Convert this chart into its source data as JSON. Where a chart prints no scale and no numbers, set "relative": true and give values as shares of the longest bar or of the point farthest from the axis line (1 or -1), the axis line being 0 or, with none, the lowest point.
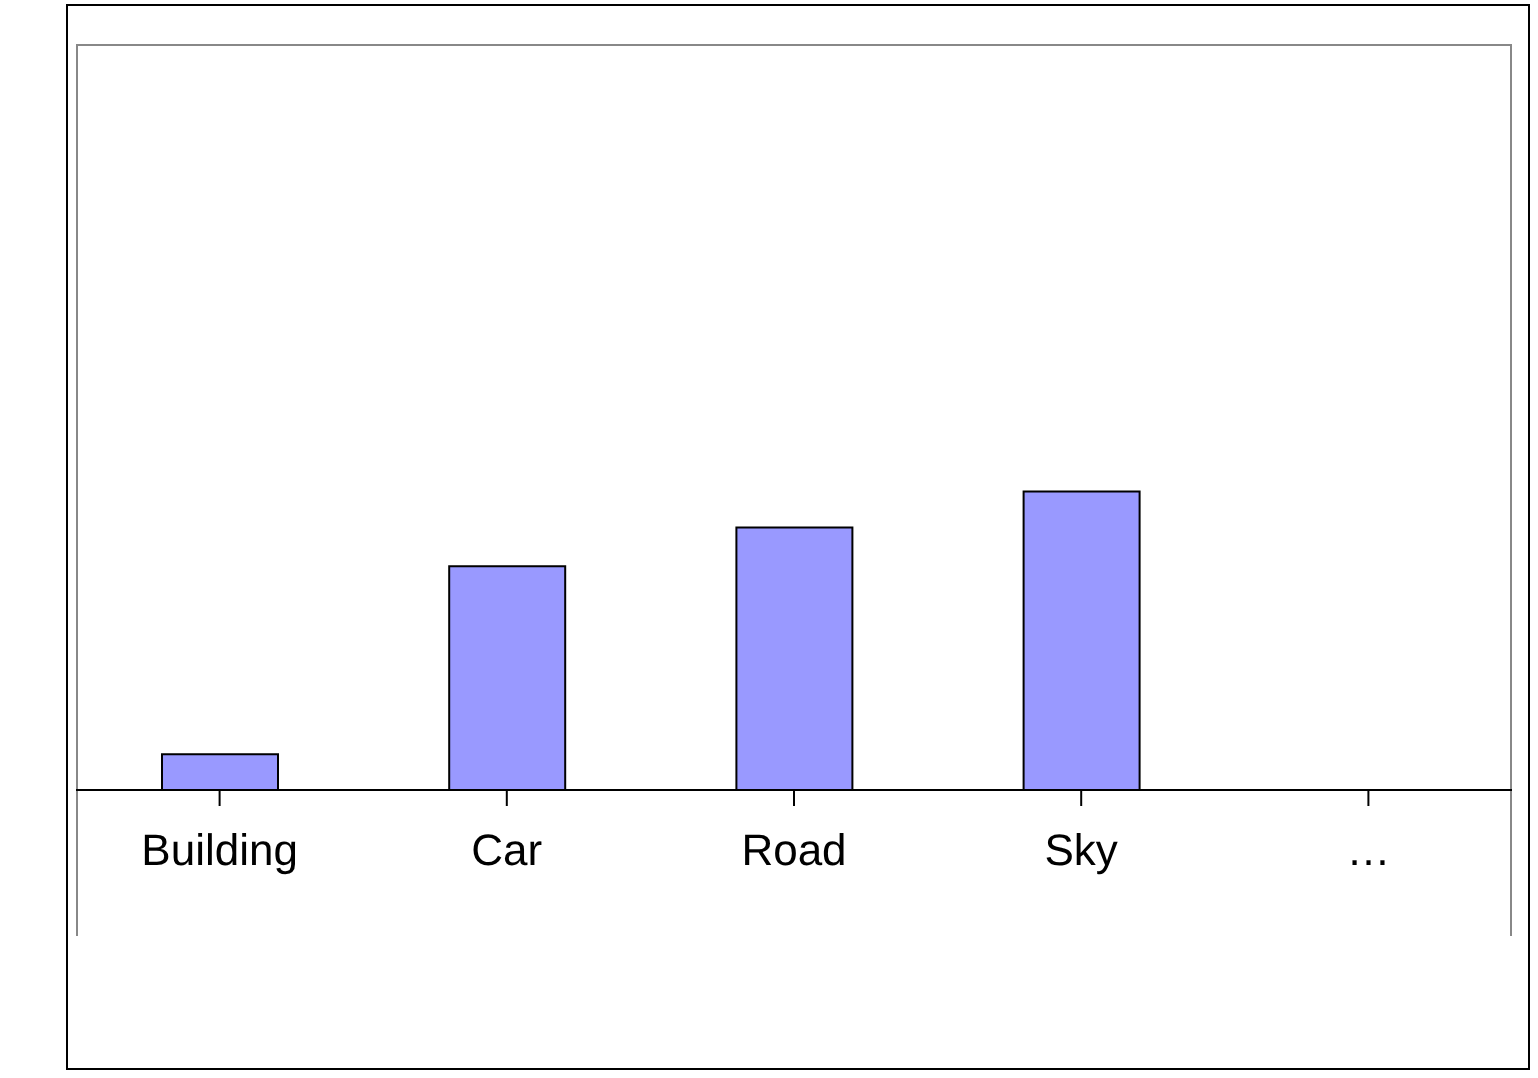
{
  "chart_data": {
    "type": "bar",
    "relative": true,
    "categories": [
      "Building",
      "Car",
      "Road",
      "Sky",
      "…"
    ],
    "values": [
      0.12,
      0.75,
      0.88,
      1,
      null
    ],
    "color": "#9999ff"
  }
}
